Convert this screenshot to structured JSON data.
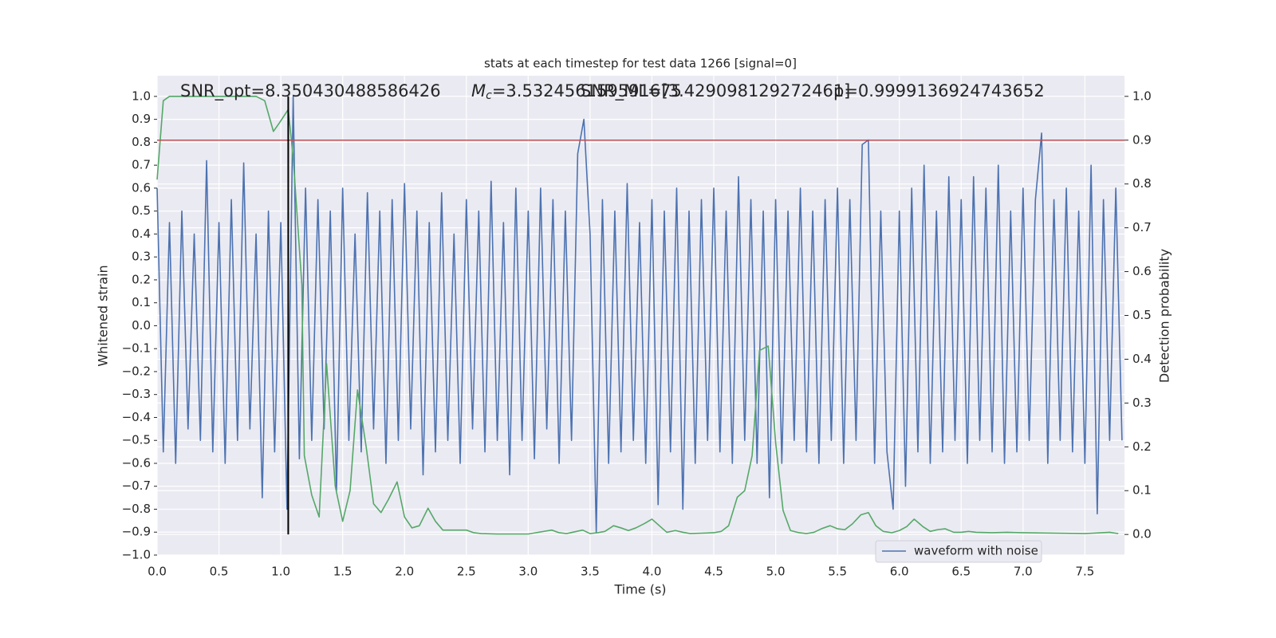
{
  "chart_data": {
    "type": "line",
    "title": "stats at each timestep for test data 1266 [signal=0]",
    "xlabel": "Time (s)",
    "ylabel": "Whitened strain",
    "y2label": "Detection probability",
    "grid": true,
    "legend": "lower right",
    "xlim": [
      0,
      7.82
    ],
    "ylim": [
      -1.0,
      1.09
    ],
    "y2lim": [
      -0.047,
      1.047
    ],
    "xticks": [
      {
        "value": 0,
        "label": "0.0"
      },
      {
        "value": 0.5,
        "label": "0.5"
      },
      {
        "value": 1,
        "label": "1.0"
      },
      {
        "value": 1.5,
        "label": "1.5"
      },
      {
        "value": 2,
        "label": "2.0"
      },
      {
        "value": 2.5,
        "label": "2.5"
      },
      {
        "value": 3,
        "label": "3.0"
      },
      {
        "value": 3.5,
        "label": "3.5"
      },
      {
        "value": 4,
        "label": "4.0"
      },
      {
        "value": 4.5,
        "label": "4.5"
      },
      {
        "value": 5,
        "label": "5.0"
      },
      {
        "value": 5.5,
        "label": "5.5"
      },
      {
        "value": 6,
        "label": "6.0"
      },
      {
        "value": 6.5,
        "label": "6.5"
      },
      {
        "value": 7,
        "label": "7.0"
      },
      {
        "value": 7.5,
        "label": "7.5"
      }
    ],
    "yticks": [
      {
        "value": -1.0,
        "label": "−1.0"
      },
      {
        "value": -0.9,
        "label": "−0.9"
      },
      {
        "value": -0.8,
        "label": "−0.8"
      },
      {
        "value": -0.7,
        "label": "−0.7"
      },
      {
        "value": -0.6,
        "label": "−0.6"
      },
      {
        "value": -0.5,
        "label": "−0.5"
      },
      {
        "value": -0.4,
        "label": "−0.4"
      },
      {
        "value": -0.3,
        "label": "−0.3"
      },
      {
        "value": -0.2,
        "label": "−0.2"
      },
      {
        "value": -0.1,
        "label": "−0.1"
      },
      {
        "value": 0,
        "label": "0.0"
      },
      {
        "value": 0.1,
        "label": "0.1"
      },
      {
        "value": 0.2,
        "label": "0.2"
      },
      {
        "value": 0.3,
        "label": "0.3"
      },
      {
        "value": 0.4,
        "label": "0.4"
      },
      {
        "value": 0.5,
        "label": "0.5"
      },
      {
        "value": 0.6,
        "label": "0.6"
      },
      {
        "value": 0.7,
        "label": "0.7"
      },
      {
        "value": 0.8,
        "label": "0.8"
      },
      {
        "value": 0.9,
        "label": "0.9"
      },
      {
        "value": 1.0,
        "label": "1.0"
      }
    ],
    "y2ticks": [
      {
        "value": 0,
        "label": "0.0"
      },
      {
        "value": 0.1,
        "label": "0.1"
      },
      {
        "value": 0.2,
        "label": "0.2"
      },
      {
        "value": 0.3,
        "label": "0.3"
      },
      {
        "value": 0.4,
        "label": "0.4"
      },
      {
        "value": 0.5,
        "label": "0.5"
      },
      {
        "value": 0.6,
        "label": "0.6"
      },
      {
        "value": 0.7,
        "label": "0.7"
      },
      {
        "value": 0.8,
        "label": "0.8"
      },
      {
        "value": 0.9,
        "label": "0.9"
      },
      {
        "value": 1.0,
        "label": "1.0"
      }
    ],
    "annotations": [
      {
        "text": "SNR_opt=8.350430488586426"
      },
      {
        "symbol": "M",
        "subscript": "c",
        "text": "=3.532456159591675"
      },
      {
        "text": "SNR_ML=[3.429098129272461]"
      },
      {
        "text": "p=0.9999136924743652"
      }
    ],
    "hline": {
      "y": 0.9,
      "axis": "y2",
      "color": "#c44e52"
    },
    "vline": {
      "x": 1.06,
      "ymin": 0,
      "ymax": 1,
      "axis": "y2",
      "color": "#000000"
    },
    "series": [
      {
        "name": "waveform with noise",
        "color": "#4c72b0",
        "x": [
          0,
          0.05,
          0.1,
          0.15,
          0.2,
          0.25,
          0.3,
          0.35,
          0.4,
          0.45,
          0.5,
          0.55,
          0.6,
          0.65,
          0.7,
          0.75,
          0.8,
          0.85,
          0.9,
          0.95,
          1,
          1.05,
          1.1,
          1.15,
          1.2,
          1.25,
          1.3,
          1.35,
          1.4,
          1.45,
          1.5,
          1.55,
          1.6,
          1.65,
          1.7,
          1.75,
          1.8,
          1.85,
          1.9,
          1.95,
          2,
          2.05,
          2.1,
          2.15,
          2.2,
          2.25,
          2.3,
          2.35,
          2.4,
          2.45,
          2.5,
          2.55,
          2.6,
          2.65,
          2.7,
          2.75,
          2.8,
          2.85,
          2.9,
          2.95,
          3,
          3.05,
          3.1,
          3.15,
          3.2,
          3.25,
          3.3,
          3.35,
          3.4,
          3.45,
          3.5,
          3.55,
          3.6,
          3.65,
          3.7,
          3.75,
          3.8,
          3.85,
          3.9,
          3.95,
          4,
          4.05,
          4.1,
          4.15,
          4.2,
          4.25,
          4.3,
          4.35,
          4.4,
          4.45,
          4.5,
          4.55,
          4.6,
          4.65,
          4.7,
          4.75,
          4.8,
          4.85,
          4.9,
          4.95,
          5,
          5.05,
          5.1,
          5.15,
          5.2,
          5.25,
          5.3,
          5.35,
          5.4,
          5.45,
          5.5,
          5.55,
          5.6,
          5.65,
          5.7,
          5.75,
          5.8,
          5.85,
          5.9,
          5.95,
          6,
          6.05,
          6.1,
          6.15,
          6.2,
          6.25,
          6.3,
          6.35,
          6.4,
          6.45,
          6.5,
          6.55,
          6.6,
          6.65,
          6.7,
          6.75,
          6.8,
          6.85,
          6.9,
          6.95,
          7,
          7.05,
          7.1,
          7.15,
          7.2,
          7.25,
          7.3,
          7.35,
          7.4,
          7.45,
          7.5,
          7.55,
          7.6,
          7.65,
          7.7,
          7.75,
          7.8
        ],
        "values": [
          0.6,
          -0.55,
          0.45,
          -0.6,
          0.5,
          -0.45,
          0.4,
          -0.5,
          0.72,
          -0.55,
          0.45,
          -0.6,
          0.55,
          -0.5,
          0.71,
          -0.45,
          0.4,
          -0.75,
          0.5,
          -0.55,
          0.45,
          -0.8,
          1.0,
          -0.58,
          0.6,
          -0.5,
          0.55,
          -0.45,
          0.5,
          -0.72,
          0.6,
          -0.5,
          0.4,
          -0.55,
          0.58,
          -0.45,
          0.5,
          -0.6,
          0.55,
          -0.5,
          0.62,
          -0.45,
          0.5,
          -0.65,
          0.45,
          -0.55,
          0.58,
          -0.5,
          0.4,
          -0.6,
          0.55,
          -0.45,
          0.5,
          -0.55,
          0.63,
          -0.5,
          0.45,
          -0.65,
          0.6,
          -0.5,
          0.5,
          -0.58,
          0.6,
          -0.45,
          0.55,
          -0.6,
          0.5,
          -0.5,
          0.75,
          0.9,
          0.4,
          -0.9,
          0.55,
          -0.6,
          0.5,
          -0.55,
          0.62,
          -0.5,
          0.45,
          -0.6,
          0.55,
          -0.78,
          0.5,
          -0.55,
          0.6,
          -0.8,
          0.5,
          -0.6,
          0.55,
          -0.5,
          0.6,
          -0.55,
          0.5,
          -0.6,
          0.65,
          -0.5,
          0.55,
          -0.6,
          0.5,
          -0.75,
          0.55,
          -0.6,
          0.5,
          -0.5,
          0.6,
          -0.55,
          0.5,
          -0.6,
          0.55,
          -0.5,
          0.6,
          -0.6,
          0.55,
          -0.5,
          0.79,
          0.81,
          -0.6,
          0.5,
          -0.55,
          -0.8,
          0.5,
          -0.7,
          0.6,
          -0.55,
          0.7,
          -0.6,
          0.5,
          -0.55,
          0.65,
          -0.5,
          0.55,
          -0.6,
          0.65,
          -0.5,
          0.6,
          -0.55,
          0.7,
          -0.6,
          0.5,
          -0.55,
          0.6,
          -0.5,
          0.55,
          0.84,
          -0.6,
          0.55,
          -0.5,
          0.6,
          -0.55,
          0.5,
          -0.6,
          0.7,
          -0.82,
          0.55,
          -0.5,
          0.6,
          -0.5
        ]
      },
      {
        "color": "#55a868",
        "axis": "y2",
        "x": [
          0,
          0.05,
          0.1,
          0.2,
          0.3,
          0.4,
          0.5,
          0.6,
          0.7,
          0.8,
          0.87,
          0.94,
          0.99,
          1.06,
          1.1,
          1.17,
          1.19,
          1.25,
          1.31,
          1.37,
          1.44,
          1.5,
          1.56,
          1.62,
          1.69,
          1.75,
          1.81,
          1.87,
          1.94,
          2,
          2.06,
          2.12,
          2.19,
          2.25,
          2.31,
          2.37,
          2.44,
          2.5,
          2.56,
          2.62,
          2.75,
          2.87,
          3,
          3.06,
          3.19,
          3.25,
          3.31,
          3.44,
          3.5,
          3.56,
          3.62,
          3.69,
          3.75,
          3.81,
          3.87,
          3.94,
          4,
          4.06,
          4.12,
          4.19,
          4.25,
          4.31,
          4.5,
          4.56,
          4.62,
          4.69,
          4.75,
          4.81,
          4.87,
          4.94,
          5,
          5.06,
          5.12,
          5.19,
          5.25,
          5.31,
          5.37,
          5.44,
          5.5,
          5.56,
          5.62,
          5.69,
          5.75,
          5.81,
          5.87,
          5.94,
          6,
          6.06,
          6.12,
          6.19,
          6.25,
          6.31,
          6.37,
          6.44,
          6.5,
          6.56,
          6.62,
          6.75,
          6.87,
          7,
          7.5,
          7.7,
          7.77
        ],
        "values": [
          0.81,
          0.99,
          1.0,
          1.0,
          1.0,
          1.0,
          1.0,
          1.0,
          1.0,
          1.0,
          0.99,
          0.92,
          0.94,
          0.97,
          0.86,
          0.57,
          0.18,
          0.09,
          0.04,
          0.39,
          0.11,
          0.03,
          0.1,
          0.33,
          0.2,
          0.07,
          0.05,
          0.08,
          0.12,
          0.04,
          0.015,
          0.02,
          0.06,
          0.03,
          0.01,
          0.01,
          0.01,
          0.01,
          0.004,
          0.002,
          0.001,
          0.001,
          0.001,
          0.004,
          0.01,
          0.004,
          0.002,
          0.01,
          0.002,
          0.004,
          0.007,
          0.02,
          0.015,
          0.009,
          0.015,
          0.025,
          0.035,
          0.02,
          0.005,
          0.009,
          0.005,
          0.002,
          0.004,
          0.007,
          0.02,
          0.085,
          0.1,
          0.18,
          0.42,
          0.43,
          0.21,
          0.055,
          0.009,
          0.004,
          0.002,
          0.005,
          0.013,
          0.02,
          0.013,
          0.011,
          0.024,
          0.045,
          0.05,
          0.02,
          0.007,
          0.004,
          0.009,
          0.018,
          0.035,
          0.018,
          0.007,
          0.011,
          0.013,
          0.005,
          0.005,
          0.007,
          0.005,
          0.004,
          0.005,
          0.004,
          0.002,
          0.005,
          0.002
        ]
      }
    ]
  }
}
